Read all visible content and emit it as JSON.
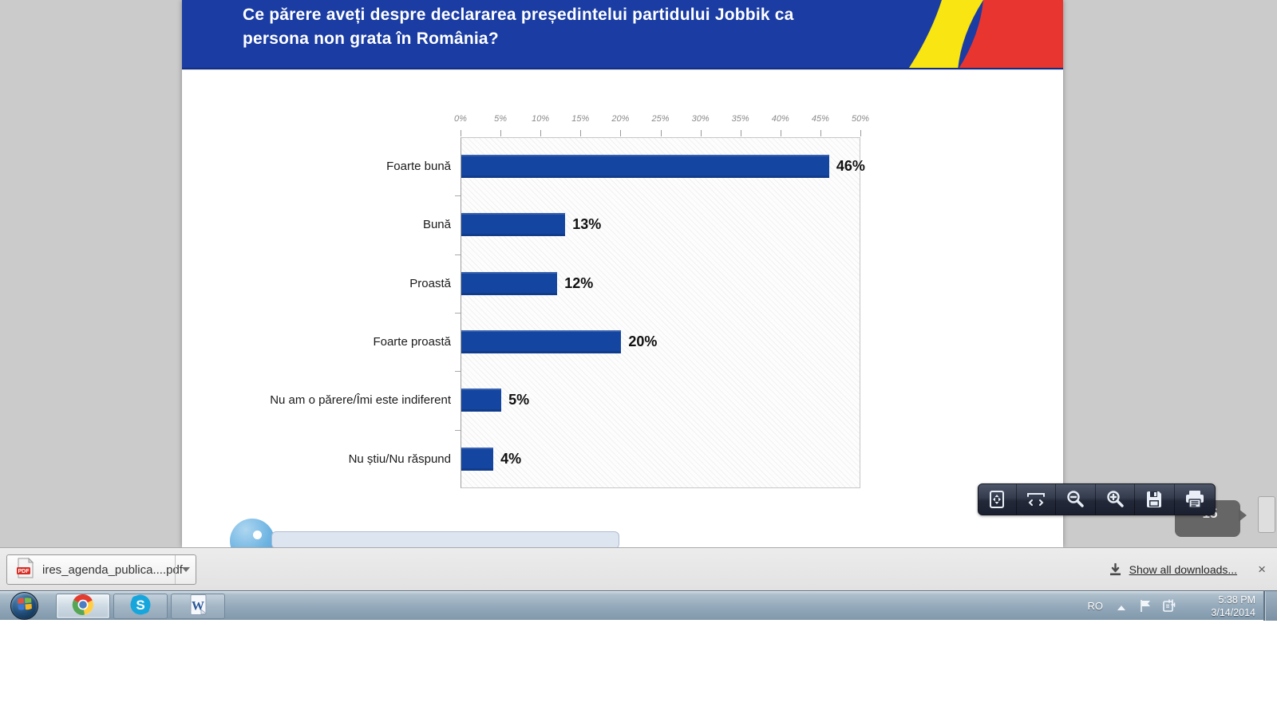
{
  "slide": {
    "title_lines": [
      "Ce părere aveți despre declararea președintelui partidului Jobbik ca",
      "persona non grata în România?"
    ],
    "flag_colors": {
      "blue": "#1a3ca3",
      "yellow": "#f8e511",
      "red": "#e8352f"
    }
  },
  "chart_data": {
    "type": "bar",
    "orientation": "horizontal",
    "categories": [
      "Foarte bună",
      "Bună",
      "Proastă",
      "Foarte proastă",
      "Nu am o părere/Îmi este indiferent",
      "Nu știu/Nu răspund"
    ],
    "values": [
      46,
      13,
      12,
      20,
      5,
      4
    ],
    "value_labels": [
      "46%",
      "13%",
      "12%",
      "20%",
      "5%",
      "4%"
    ],
    "x_ticks": [
      "0%",
      "5%",
      "10%",
      "15%",
      "20%",
      "25%",
      "30%",
      "35%",
      "40%",
      "45%",
      "50%"
    ],
    "xlim": [
      0,
      50
    ],
    "bar_color": "#1445a0",
    "title": "",
    "xlabel": "",
    "ylabel": "",
    "grid": "hatched-plot-background",
    "legend": "none"
  },
  "viewer": {
    "page_indicator": "15",
    "toolbar_buttons": [
      "fit-page-icon",
      "fit-width-icon",
      "zoom-out-icon",
      "zoom-in-icon",
      "save-icon",
      "print-icon"
    ]
  },
  "downloads": {
    "filename": "ires_agenda_publica....pdf",
    "show_all_label": "Show all downloads...",
    "close_glyph": "×"
  },
  "taskbar": {
    "apps": [
      "start",
      "chrome",
      "skype",
      "word"
    ],
    "tray": {
      "language": "RO",
      "time": "5:38 PM",
      "date": "3/14/2014"
    }
  }
}
